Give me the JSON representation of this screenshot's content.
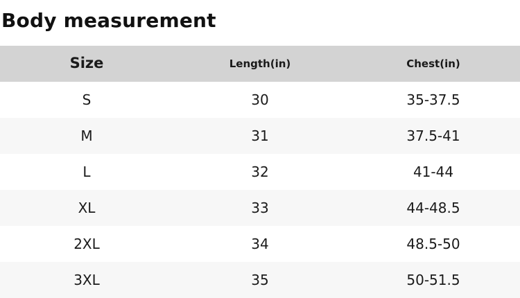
{
  "page": {
    "title": "Body measurement"
  },
  "theme": {
    "header_bg": "#d3d3d3",
    "row_bg": "#ffffff",
    "row_alt_bg": "#f7f7f7",
    "text_color": "#1a1a1a"
  },
  "table": {
    "columns": [
      {
        "label": "Size"
      },
      {
        "label": "Length(in)"
      },
      {
        "label": "Chest(in)"
      }
    ],
    "rows": [
      {
        "cells": [
          "S",
          "30",
          "35-37.5"
        ]
      },
      {
        "cells": [
          "M",
          "31",
          "37.5-41"
        ]
      },
      {
        "cells": [
          "L",
          "32",
          "41-44"
        ]
      },
      {
        "cells": [
          "XL",
          "33",
          "44-48.5"
        ]
      },
      {
        "cells": [
          "2XL",
          "34",
          "48.5-50"
        ]
      },
      {
        "cells": [
          "3XL",
          "35",
          "50-51.5"
        ]
      }
    ]
  }
}
